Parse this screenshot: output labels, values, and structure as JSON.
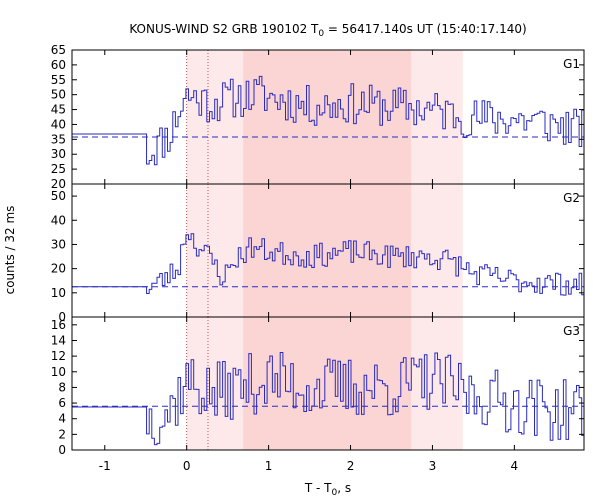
{
  "chart_data": {
    "type": "line",
    "title_prefix": "KONUS-WIND S2 GRB 190102 T",
    "title_sub": "0",
    "title_suffix": " = 56417.140s UT (15:40:17.140)",
    "xlabel_prefix": "T - T",
    "xlabel_sub": "0",
    "xlabel_suffix": ", s",
    "ylabel": "counts / 32 ms",
    "xlim": [
      -1.4,
      4.85
    ],
    "xticks": [
      -1,
      0,
      1,
      2,
      3,
      4
    ],
    "x_tick_labels": [
      "-1",
      "0",
      "1",
      "2",
      "3",
      "4"
    ],
    "grid": false,
    "line_color": "#2b2bbf",
    "shade_light_color": "#fde9e9",
    "shade_dark_color": "#fbd4d4",
    "shade_light": [
      0.0,
      3.37
    ],
    "shade_dark": [
      0.69,
      2.74
    ],
    "vlines": [
      0.0,
      0.26
    ],
    "panels": [
      {
        "name": "G1",
        "ylim": [
          20,
          65
        ],
        "yticks": [
          20,
          25,
          30,
          35,
          40,
          45,
          50,
          55,
          60,
          65
        ],
        "background": 35.8,
        "pre_level": 36.8,
        "pre_end": -0.49,
        "anchors": [
          [
            -0.49,
            30
          ],
          [
            -0.35,
            33
          ],
          [
            -0.2,
            37
          ],
          [
            -0.1,
            44
          ],
          [
            0.0,
            50
          ],
          [
            0.1,
            49
          ],
          [
            0.3,
            47
          ],
          [
            0.6,
            49
          ],
          [
            0.9,
            50
          ],
          [
            1.5,
            46
          ],
          [
            2.0,
            47
          ],
          [
            2.5,
            46
          ],
          [
            3.0,
            45
          ],
          [
            3.5,
            42
          ],
          [
            4.0,
            42
          ],
          [
            4.5,
            40
          ],
          [
            4.85,
            38
          ]
        ],
        "noise": 7,
        "seed": 11
      },
      {
        "name": "G2",
        "ylim": [
          0,
          55
        ],
        "yticks": [
          0,
          10,
          20,
          30,
          40,
          50
        ],
        "background": 12.5,
        "pre_level": 12.5,
        "pre_end": -0.49,
        "anchors": [
          [
            -0.49,
            12
          ],
          [
            -0.3,
            15
          ],
          [
            -0.1,
            20
          ],
          [
            0.0,
            37
          ],
          [
            0.1,
            31
          ],
          [
            0.3,
            24
          ],
          [
            0.45,
            16
          ],
          [
            0.6,
            24
          ],
          [
            0.8,
            29
          ],
          [
            1.0,
            27
          ],
          [
            1.5,
            25
          ],
          [
            2.0,
            27
          ],
          [
            2.5,
            25
          ],
          [
            3.0,
            25
          ],
          [
            3.3,
            22
          ],
          [
            3.5,
            18
          ],
          [
            4.0,
            15
          ],
          [
            4.5,
            14
          ],
          [
            4.85,
            13
          ]
        ],
        "noise": 5,
        "seed": 23
      },
      {
        "name": "G3",
        "ylim": [
          0,
          17
        ],
        "yticks": [
          0,
          2,
          4,
          6,
          8,
          10,
          12,
          14,
          16
        ],
        "background": 5.6,
        "pre_level": 5.5,
        "pre_end": -0.49,
        "anchors": [
          [
            -0.49,
            4
          ],
          [
            -0.2,
            5
          ],
          [
            0.0,
            9
          ],
          [
            0.3,
            7
          ],
          [
            0.6,
            8
          ],
          [
            1.0,
            9
          ],
          [
            1.5,
            8
          ],
          [
            2.0,
            8
          ],
          [
            2.5,
            8
          ],
          [
            3.0,
            9
          ],
          [
            3.5,
            7
          ],
          [
            4.0,
            6
          ],
          [
            4.5,
            5
          ],
          [
            4.85,
            5
          ]
        ],
        "noise": 4,
        "seed": 37
      }
    ]
  }
}
